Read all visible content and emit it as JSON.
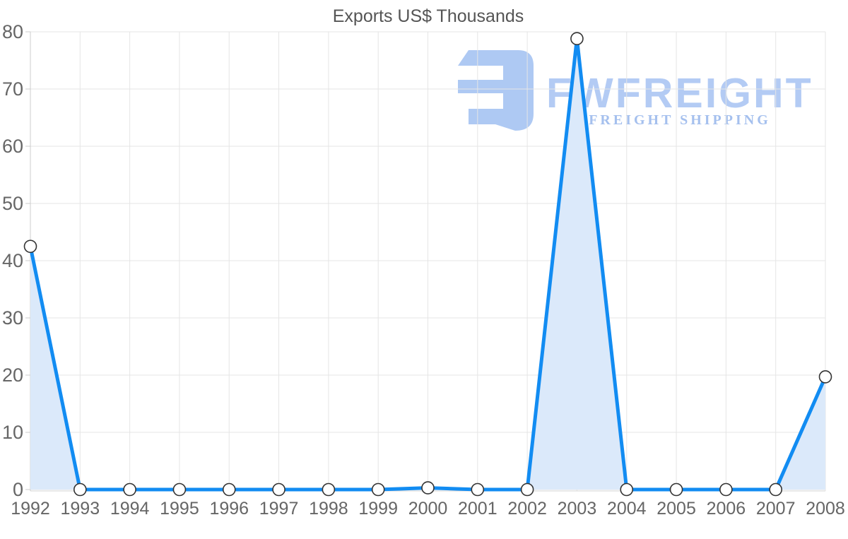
{
  "chart_data": {
    "type": "area",
    "title": "Exports US$ Thousands",
    "categories": [
      "1992",
      "1993",
      "1994",
      "1995",
      "1996",
      "1997",
      "1998",
      "1999",
      "2000",
      "2001",
      "2002",
      "2003",
      "2004",
      "2005",
      "2006",
      "2007",
      "2008"
    ],
    "series": [
      {
        "name": "Exports",
        "values": [
          42.5,
          0,
          0,
          0,
          0,
          0,
          0,
          0,
          0.3,
          0,
          0,
          78.8,
          0,
          0,
          0,
          0,
          19.7
        ]
      }
    ],
    "xlabel": "",
    "ylabel": "",
    "ylim": [
      0,
      80
    ],
    "yticks": [
      0,
      10,
      20,
      30,
      40,
      50,
      60,
      70,
      80
    ],
    "grid": true,
    "legend": false,
    "colors": {
      "line": "#128cf2",
      "fill": "#dbe9fa",
      "marker_fill": "#ffffff",
      "marker_stroke": "#333333",
      "grid": "#e5e5e5",
      "axis": "#cccccc",
      "baseline": "#d4d4d4",
      "label": "#666666",
      "title": "#555555"
    }
  },
  "watermark": {
    "brand": "FWFREIGHT",
    "tagline": "FREIGHT SHIPPING",
    "colors": {
      "icon": "#aec9f3",
      "brand": "#b3cbf4",
      "tagline": "#a5c0ee"
    }
  }
}
